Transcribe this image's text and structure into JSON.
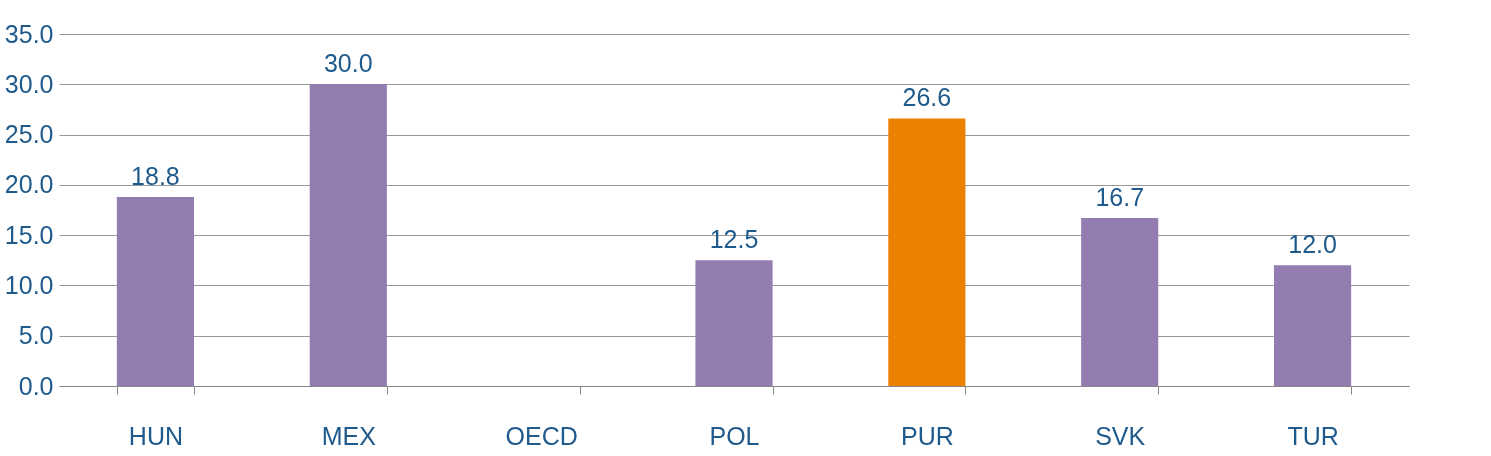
{
  "chart_data": {
    "type": "bar",
    "categories": [
      "HUN",
      "MEX",
      "OECD",
      "POL",
      "PUR",
      "SVK",
      "TUR"
    ],
    "values": [
      18.8,
      30.0,
      null,
      12.5,
      26.6,
      16.7,
      12.0
    ],
    "value_labels": [
      "18.8",
      "30.0",
      null,
      "12.5",
      "26.6",
      "16.7",
      "12.0"
    ],
    "colors": [
      "#927cb0",
      "#927cb0",
      null,
      "#927cb0",
      "#ec8000",
      "#927cb0",
      "#927cb0"
    ],
    "ylim": [
      0,
      35
    ],
    "yticks": [
      {
        "value": 0,
        "label": "0.0"
      },
      {
        "value": 5,
        "label": "5.0"
      },
      {
        "value": 10,
        "label": "10.0"
      },
      {
        "value": 15,
        "label": "15.0"
      },
      {
        "value": 20,
        "label": "20.0"
      },
      {
        "value": 25,
        "label": "25.0"
      },
      {
        "value": 30,
        "label": "30.0"
      },
      {
        "value": 35,
        "label": "35.0"
      }
    ],
    "grid": "y"
  }
}
